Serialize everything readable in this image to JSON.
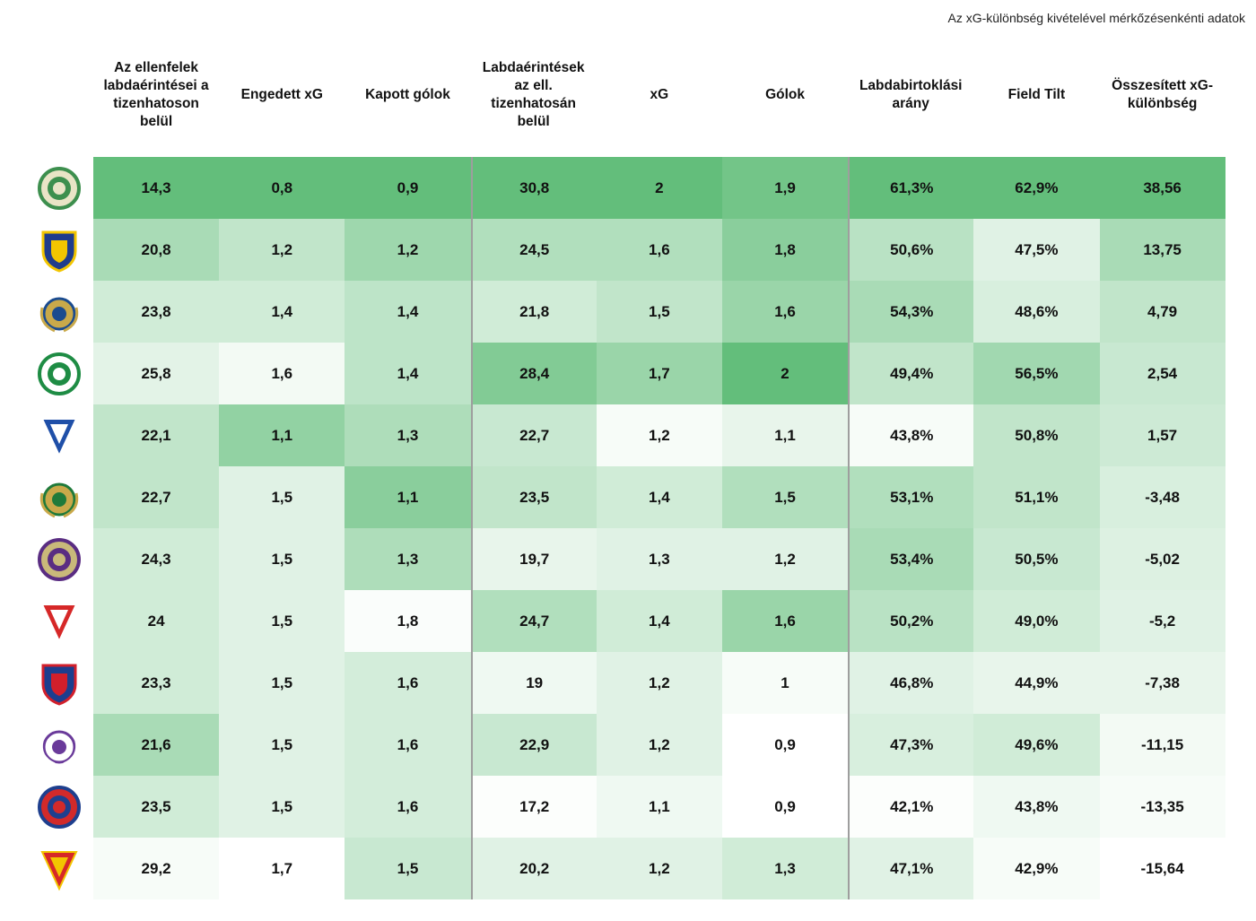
{
  "note": "Az xG-különbség kivételével mérkőzésenkénti adatok",
  "chart_data": {
    "type": "table",
    "columns": [
      "Az ellenfelek labdaérintései a tizenhatoson belül",
      "Engedett xG",
      "Kapott gólok",
      "Labdaérintések az ell. tizenhatosán belül",
      "xG",
      "Gólok",
      "Labdabirtoklási arány",
      "Field Tilt",
      "Összesített xG-különbség"
    ],
    "rows": [
      [
        "14,3",
        "0,8",
        "0,9",
        "30,8",
        "2",
        "1,9",
        "61,3%",
        "62,9%",
        "38,56"
      ],
      [
        "20,8",
        "1,2",
        "1,2",
        "24,5",
        "1,6",
        "1,8",
        "50,6%",
        "47,5%",
        "13,75"
      ],
      [
        "23,8",
        "1,4",
        "1,4",
        "21,8",
        "1,5",
        "1,6",
        "54,3%",
        "48,6%",
        "4,79"
      ],
      [
        "25,8",
        "1,6",
        "1,4",
        "28,4",
        "1,7",
        "2",
        "49,4%",
        "56,5%",
        "2,54"
      ],
      [
        "22,1",
        "1,1",
        "1,3",
        "22,7",
        "1,2",
        "1,1",
        "43,8%",
        "50,8%",
        "1,57"
      ],
      [
        "22,7",
        "1,5",
        "1,1",
        "23,5",
        "1,4",
        "1,5",
        "53,1%",
        "51,1%",
        "-3,48"
      ],
      [
        "24,3",
        "1,5",
        "1,3",
        "19,7",
        "1,3",
        "1,2",
        "53,4%",
        "50,5%",
        "-5,02"
      ],
      [
        "24",
        "1,5",
        "1,8",
        "24,7",
        "1,4",
        "1,6",
        "50,2%",
        "49,0%",
        "-5,2"
      ],
      [
        "23,3",
        "1,5",
        "1,6",
        "19",
        "1,2",
        "1",
        "46,8%",
        "44,9%",
        "-7,38"
      ],
      [
        "21,6",
        "1,5",
        "1,6",
        "22,9",
        "1,2",
        "0,9",
        "47,3%",
        "49,6%",
        "-11,15"
      ],
      [
        "23,5",
        "1,5",
        "1,6",
        "17,2",
        "1,1",
        "0,9",
        "42,1%",
        "43,8%",
        "-13,35"
      ],
      [
        "29,2",
        "1,7",
        "1,5",
        "20,2",
        "1,2",
        "1,3",
        "47,1%",
        "42,9%",
        "-15,64"
      ]
    ],
    "cell_shading": [
      [
        1.0,
        1.0,
        1.0,
        1.0,
        1.0,
        0.9,
        1.0,
        1.0,
        1.0
      ],
      [
        0.55,
        0.4,
        0.62,
        0.5,
        0.5,
        0.75,
        0.45,
        0.2,
        0.55
      ],
      [
        0.3,
        0.3,
        0.42,
        0.3,
        0.4,
        0.65,
        0.55,
        0.25,
        0.4
      ],
      [
        0.18,
        0.08,
        0.42,
        0.8,
        0.65,
        1.0,
        0.4,
        0.6,
        0.35
      ],
      [
        0.4,
        0.7,
        0.52,
        0.35,
        0.05,
        0.15,
        0.05,
        0.4,
        0.32
      ],
      [
        0.4,
        0.2,
        0.75,
        0.4,
        0.3,
        0.5,
        0.5,
        0.4,
        0.25
      ],
      [
        0.3,
        0.2,
        0.52,
        0.15,
        0.2,
        0.2,
        0.55,
        0.35,
        0.22
      ],
      [
        0.3,
        0.2,
        0.03,
        0.5,
        0.3,
        0.65,
        0.45,
        0.3,
        0.2
      ],
      [
        0.3,
        0.2,
        0.28,
        0.1,
        0.2,
        0.05,
        0.2,
        0.15,
        0.15
      ],
      [
        0.55,
        0.2,
        0.28,
        0.35,
        0.2,
        0.0,
        0.25,
        0.3,
        0.08
      ],
      [
        0.3,
        0.2,
        0.28,
        0.02,
        0.1,
        0.0,
        0.02,
        0.1,
        0.05
      ],
      [
        0.05,
        0.0,
        0.35,
        0.2,
        0.2,
        0.3,
        0.2,
        0.05,
        0.0
      ]
    ],
    "colors": {
      "max": "#63be7b",
      "min": "#ffffff",
      "separator": "#9e9e9e"
    }
  },
  "teams": [
    {
      "icon": "ferencvaros-crest-icon",
      "colors": [
        "#3d8f4e",
        "#e9e4c6"
      ]
    },
    {
      "icon": "puskas-akademia-crest-icon",
      "colors": [
        "#1f3c8c",
        "#f2c500"
      ]
    },
    {
      "icon": "mtk-crest-icon",
      "colors": [
        "#1a4b8f",
        "#c9a94a"
      ]
    },
    {
      "icon": "paks-crest-icon",
      "colors": [
        "#1e8c44",
        "#ffffff"
      ]
    },
    {
      "icon": "zte-crest-icon",
      "colors": [
        "#1f4fa8",
        "#ffffff"
      ]
    },
    {
      "icon": "eto-crest-icon",
      "colors": [
        "#1f7a3a",
        "#c9a94a"
      ]
    },
    {
      "icon": "ujpest-crest-icon",
      "colors": [
        "#5a2d82",
        "#c9b97a"
      ]
    },
    {
      "icon": "dvsc-crest-icon",
      "colors": [
        "#d62828",
        "#ffffff"
      ]
    },
    {
      "icon": "fehervar-crest-icon",
      "colors": [
        "#1c3e8e",
        "#d21f2b"
      ]
    },
    {
      "icon": "kte-crest-icon",
      "colors": [
        "#6a3a9a",
        "#ffffff"
      ]
    },
    {
      "icon": "nyiregyhaza-crest-icon",
      "colors": [
        "#1e3f8e",
        "#d22a2a"
      ]
    },
    {
      "icon": "dvtk-crest-icon",
      "colors": [
        "#d62828",
        "#f2c500"
      ]
    }
  ]
}
